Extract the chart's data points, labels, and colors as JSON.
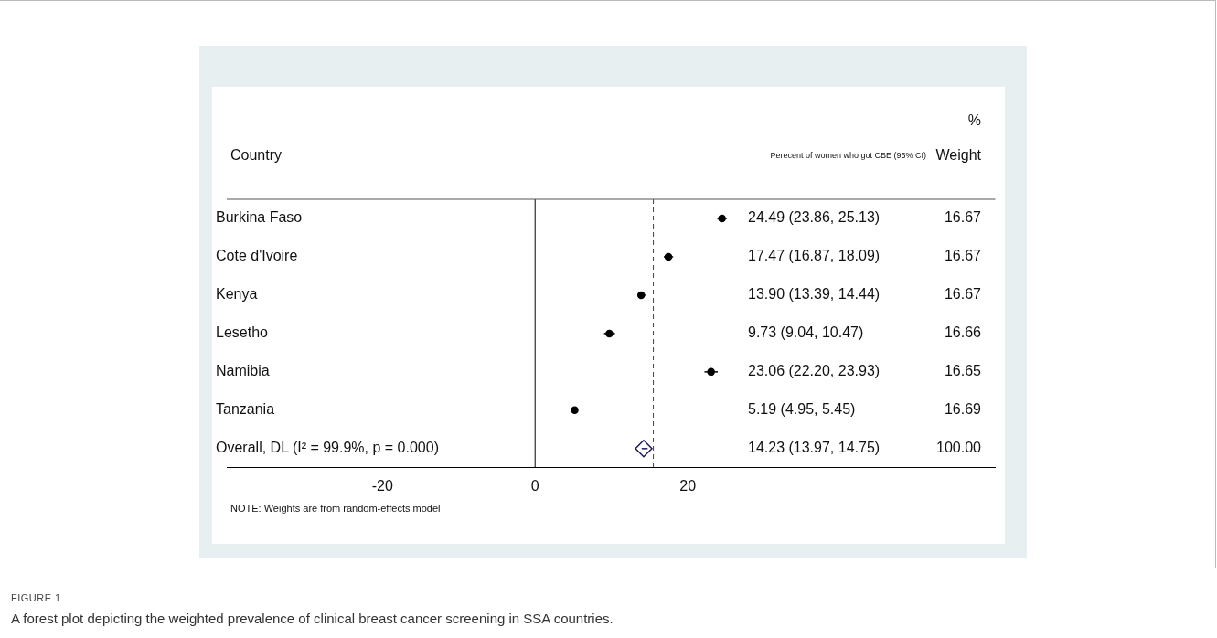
{
  "chart_data": {
    "type": "scatter",
    "orientation": "horizontal",
    "title": "FIGURE 1",
    "subtitle": "A forest plot depicting the weighted prevalence of clinical breast cancer screening in SSA countries.",
    "categories": [
      "Burkina Faso",
      "Cote d'Ivoire",
      "Kenya",
      "Lesetho",
      "Namibia",
      "Tanzania",
      "Overall, DL (I² = 99.9%, p = 0.000)"
    ],
    "xlim": [
      -40.4,
      60.3
    ],
    "xticks": [
      -20,
      0,
      20
    ],
    "grid": false,
    "legend": false,
    "marker": "circle",
    "series": [
      {
        "color": "#000000",
        "values": [
          24.49,
          17.47,
          13.9,
          9.73,
          23.06,
          5.19,
          null
        ],
        "errors": [
          [
            23.86,
            25.13
          ],
          [
            16.87,
            18.09
          ],
          [
            13.39,
            14.44
          ],
          [
            9.04,
            10.47
          ],
          [
            22.2,
            23.93
          ],
          [
            4.95,
            5.45
          ],
          null
        ]
      },
      {
        "color": "#1c1c5c",
        "marker": "diamond",
        "values": [
          null,
          null,
          null,
          null,
          null,
          null,
          14.23
        ],
        "errors": [
          null,
          null,
          null,
          null,
          null,
          null,
          [
            13.97,
            14.75
          ]
        ]
      }
    ],
    "ref_lines": [
      {
        "axis": "x",
        "value": 0,
        "color": "#000000",
        "line_style": "solid"
      },
      {
        "axis": "x",
        "value": 15.5,
        "color": "#8b2332",
        "line_style": "dashed"
      }
    ],
    "annotations": [
      "Country",
      "Perecent of women who got CBE (95% CI)",
      "%",
      "Weight",
      "NOTE: Weights are from random-effects model",
      "24.49 (23.86, 25.13)",
      "16.67",
      "17.47 (16.87, 18.09)",
      "16.67",
      "13.90 (13.39, 14.44)",
      "16.67",
      "9.73 (9.04, 10.47)",
      "16.66",
      "23.06 (22.20, 23.93)",
      "16.65",
      "5.19 (4.95, 5.45)",
      "16.69",
      "14.23 (13.97, 14.75)",
      "100.00"
    ]
  }
}
